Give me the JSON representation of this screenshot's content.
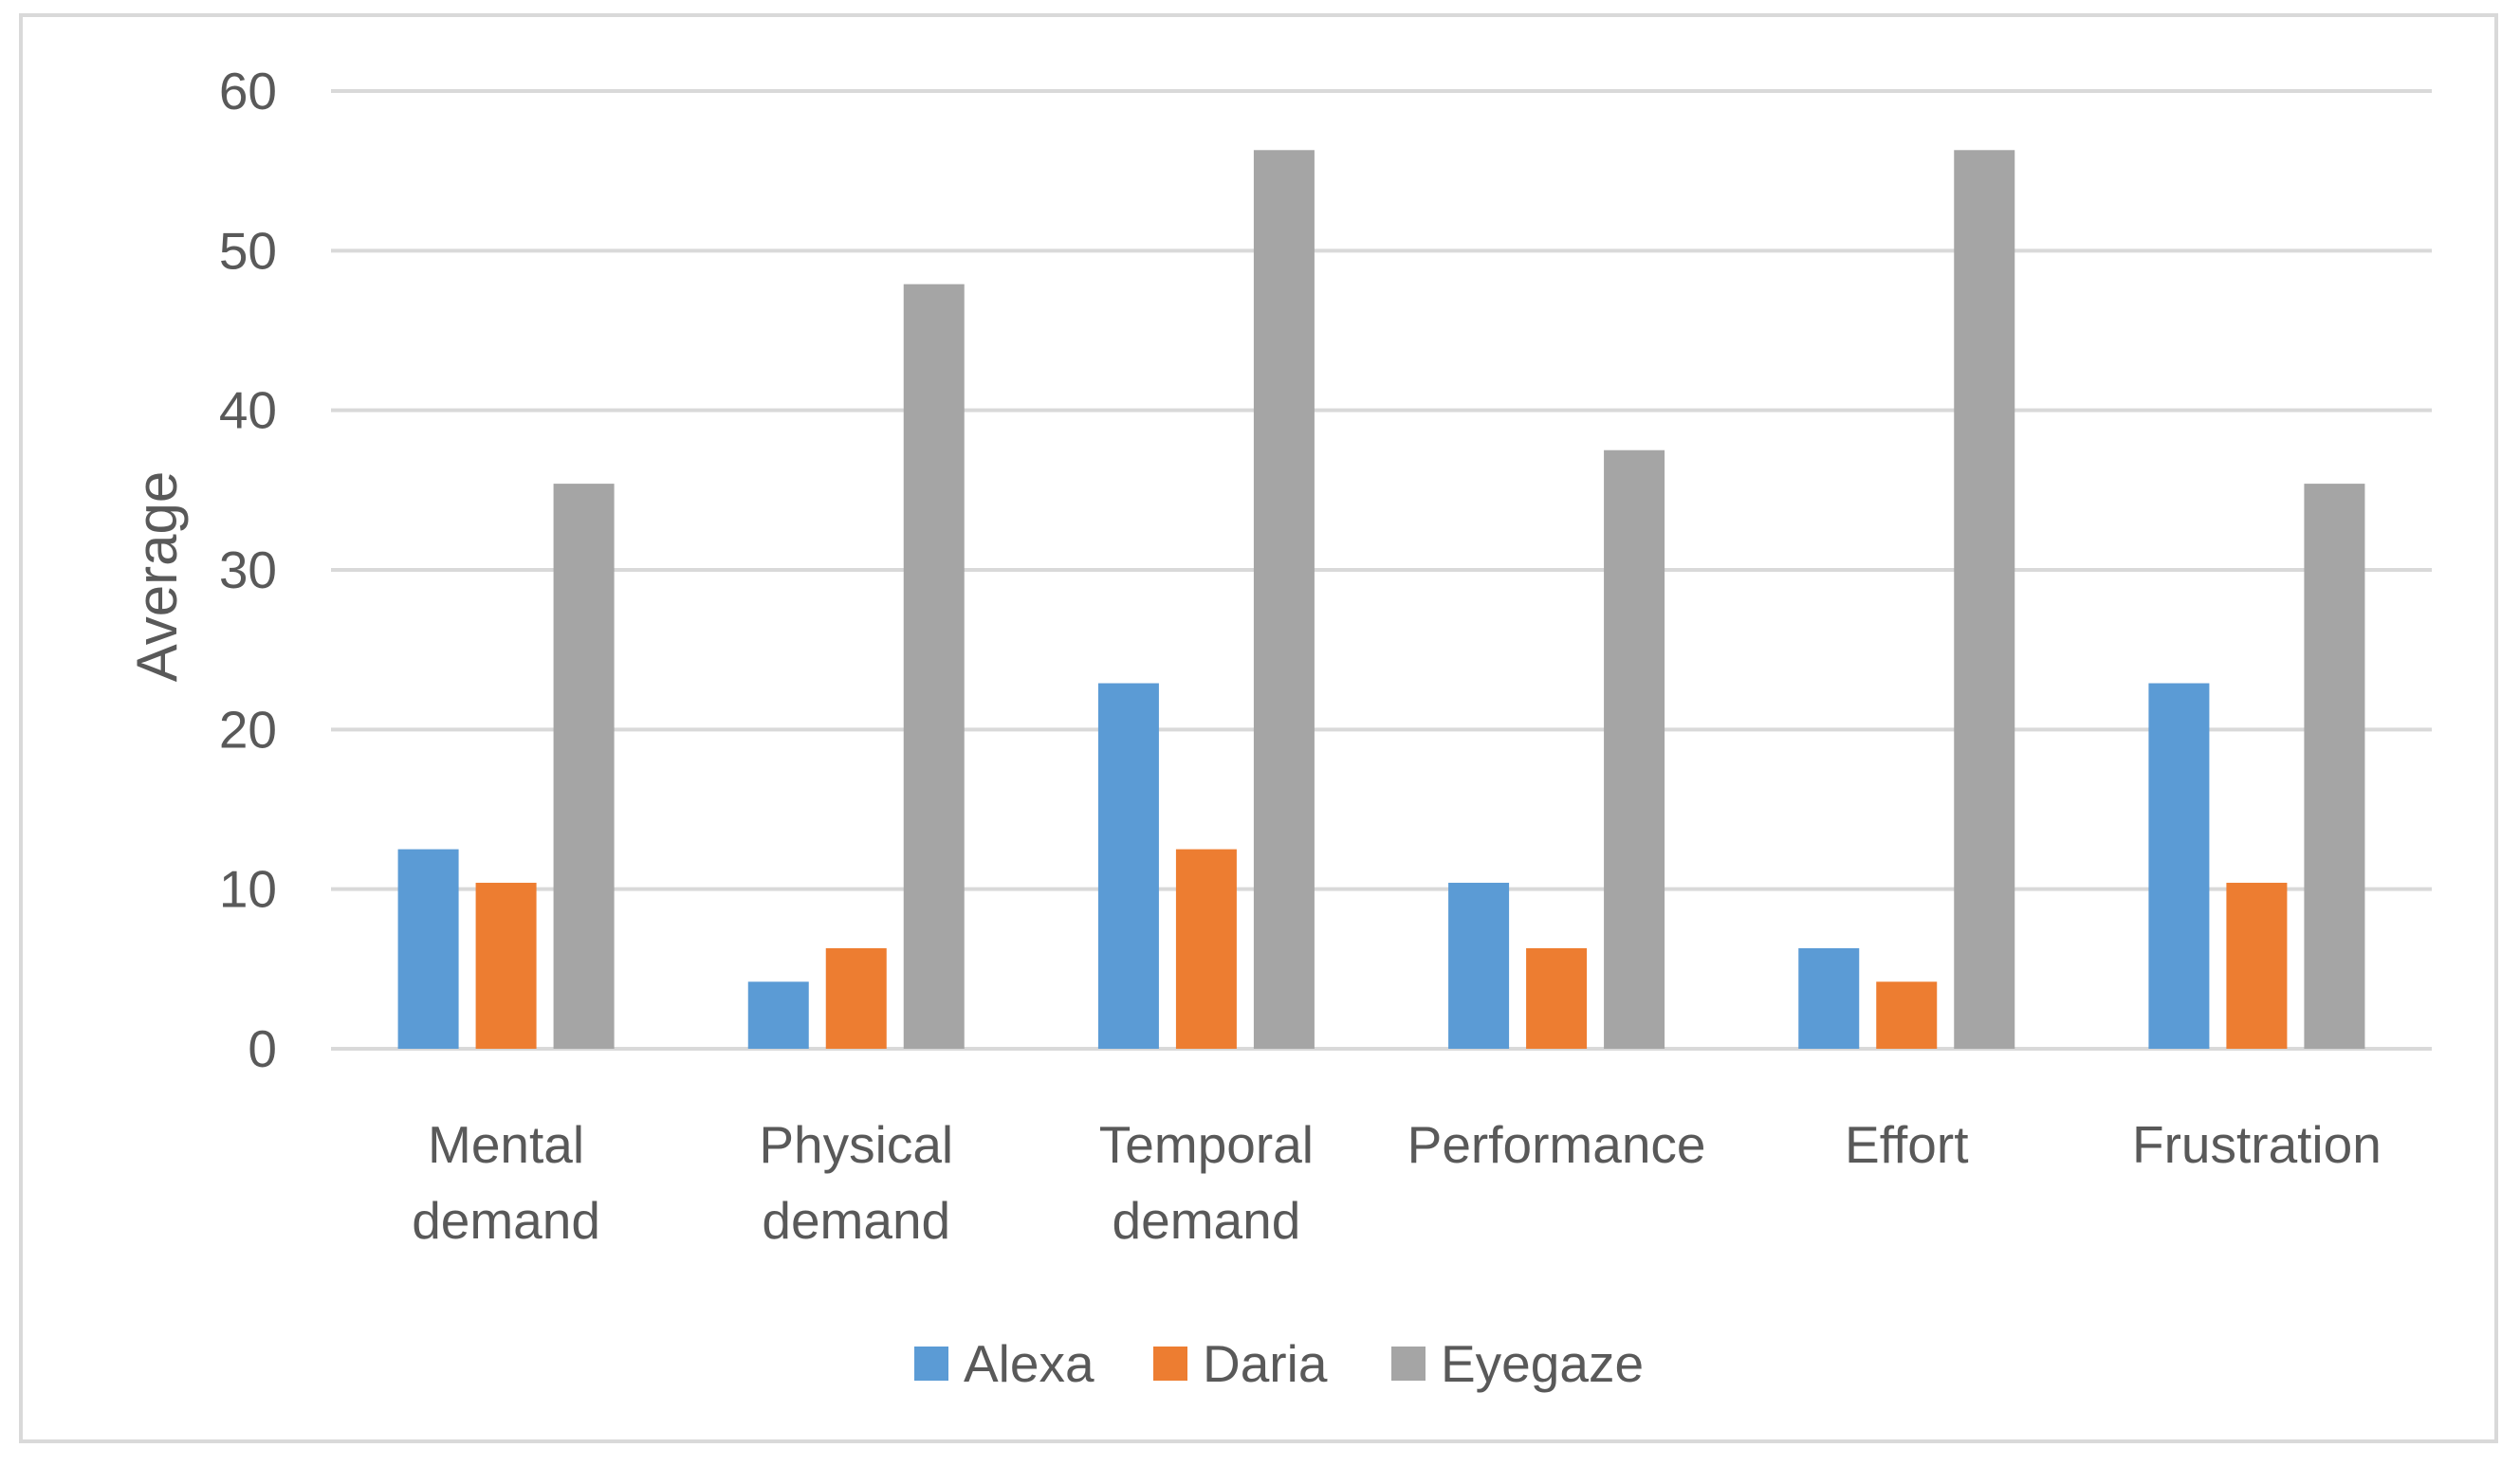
{
  "chart_data": {
    "type": "bar",
    "title": "",
    "xlabel": "",
    "ylabel": "Average",
    "ylim": [
      0,
      60
    ],
    "yticks": [
      0,
      10,
      20,
      30,
      40,
      50,
      60
    ],
    "grid": true,
    "legend_position": "bottom",
    "categories": [
      [
        "Mental",
        "demand"
      ],
      [
        "Physical",
        "demand"
      ],
      [
        "Temporal",
        "demand"
      ],
      [
        "Performance"
      ],
      [
        "Effort"
      ],
      [
        "Frustration"
      ]
    ],
    "series": [
      {
        "name": "Alexa",
        "color": "#5b9bd5",
        "values": [
          12.5,
          4.2,
          22.9,
          10.4,
          6.3,
          22.9
        ]
      },
      {
        "name": "Daria",
        "color": "#ed7d31",
        "values": [
          10.4,
          6.3,
          12.5,
          6.3,
          4.2,
          10.4
        ]
      },
      {
        "name": "Eyegaze",
        "color": "#a5a5a5",
        "values": [
          35.4,
          47.9,
          56.3,
          37.5,
          56.3,
          35.4
        ]
      }
    ]
  }
}
